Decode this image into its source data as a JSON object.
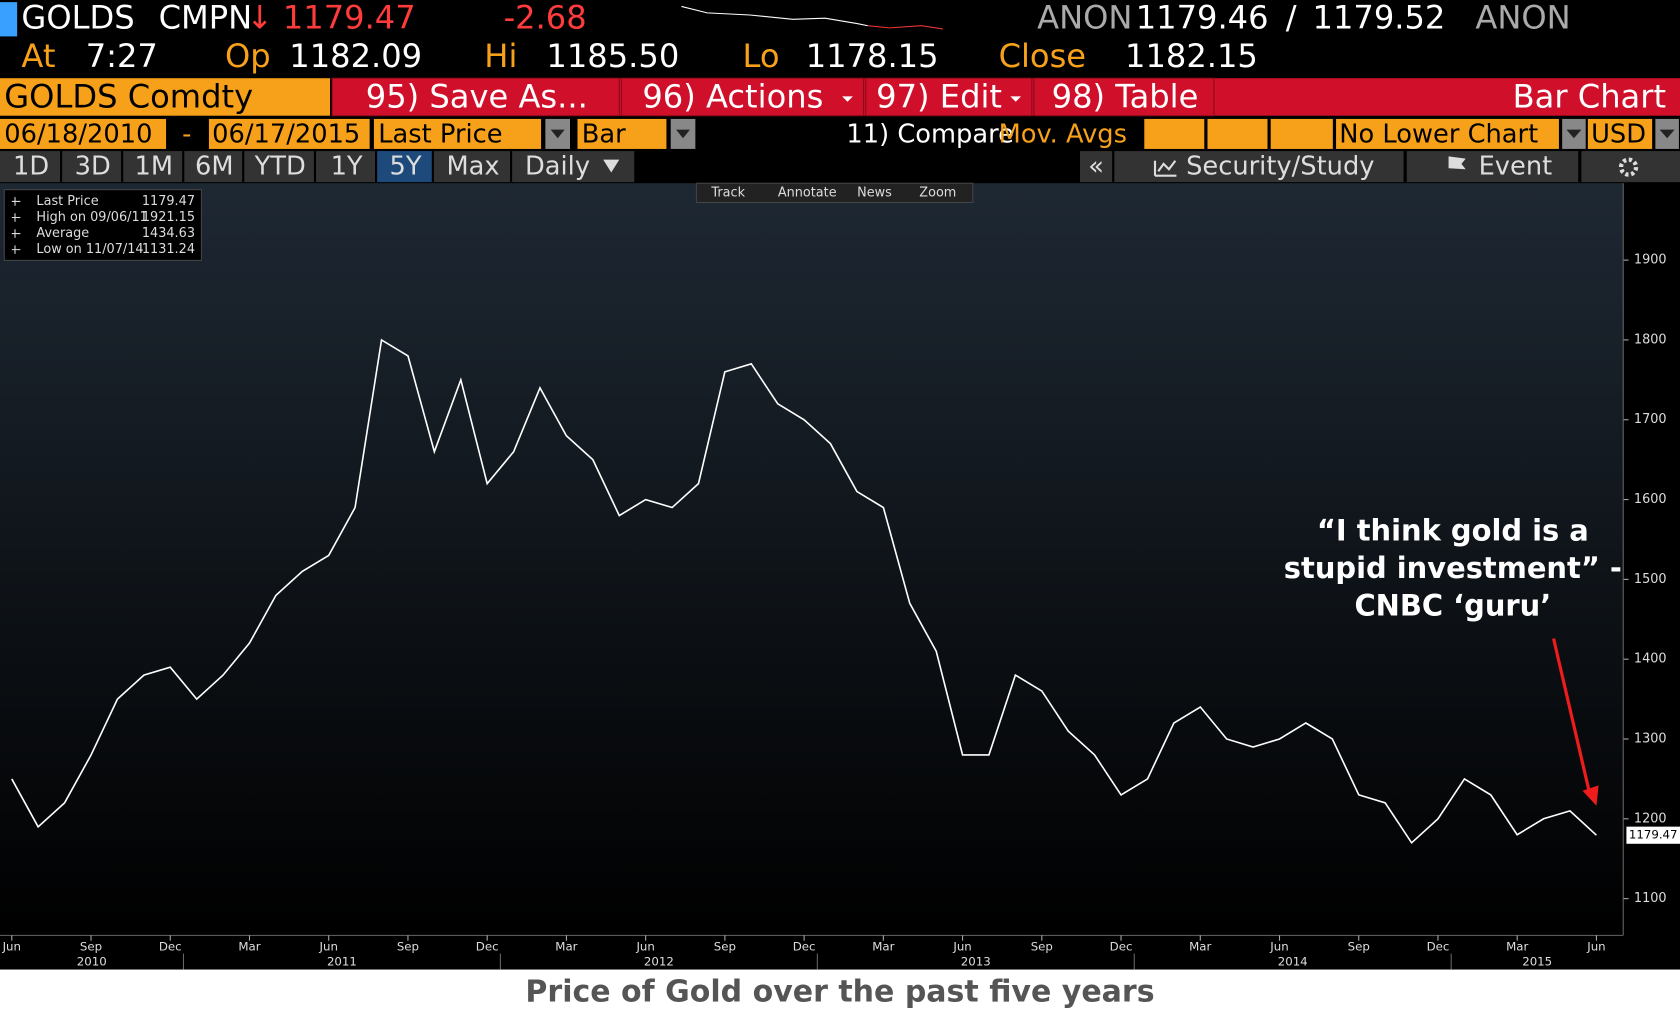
{
  "quote": {
    "ticker": "GOLDS",
    "source": "CMPN",
    "arrow": "↓",
    "last": "1179.47",
    "change": "-2.68",
    "bid_source": "ANON",
    "bid": "1179.46",
    "separator": "/",
    "ask": "1179.52",
    "ask_source": "ANON"
  },
  "stats": {
    "at_label": "At",
    "time": "7:27",
    "open_label": "Op",
    "open": "1182.09",
    "high_label": "Hi",
    "high": "1185.50",
    "low_label": "Lo",
    "low": "1178.15",
    "close_label": "Close",
    "close": "1182.15"
  },
  "toolbar": {
    "security": "GOLDS Comdty",
    "buttons": [
      "95) Save As...",
      "96) Actions",
      "97) Edit",
      "98) Table"
    ],
    "view": "Bar Chart"
  },
  "settings": {
    "start": "06/18/2010",
    "dash": "-",
    "end": "06/17/2015",
    "field": "Last Price",
    "style": "Bar",
    "compare": "11) Compare",
    "mov_avgs": "Mov. Avgs",
    "lower": "No Lower Chart",
    "currency": "USD"
  },
  "tabs": {
    "periods": [
      "1D",
      "3D",
      "1M",
      "6M",
      "YTD",
      "1Y",
      "5Y",
      "Max"
    ],
    "active": 6,
    "frequency": "Daily",
    "collapse": "«",
    "right": [
      "Security/Study",
      "Event"
    ]
  },
  "chart_tools": [
    "Track",
    "Annotate",
    "News",
    "Zoom"
  ],
  "chart_data": {
    "type": "line",
    "color": "#ffffff",
    "legend": [
      {
        "label": "Last Price",
        "value": 1179.47
      },
      {
        "label": "High on 09/06/11",
        "value": 1921.15
      },
      {
        "label": "Average",
        "value": 1434.63
      },
      {
        "label": "Low on 11/07/14",
        "value": 1131.24
      }
    ],
    "categories": [
      "Jun",
      null,
      null,
      "Sep",
      null,
      null,
      "Dec",
      null,
      null,
      "Mar",
      null,
      null,
      "Jun",
      null,
      null,
      "Sep",
      null,
      null,
      "Dec",
      null,
      null,
      "Mar",
      null,
      null,
      "Jun",
      null,
      null,
      "Sep",
      null,
      null,
      "Dec",
      null,
      null,
      "Mar",
      null,
      null,
      "Jun",
      null,
      null,
      "Sep",
      null,
      null,
      "Dec",
      null,
      null,
      "Mar",
      null,
      null,
      "Jun",
      null,
      null,
      "Sep",
      null,
      null,
      "Dec",
      null,
      null,
      "Mar",
      null,
      null,
      "Jun"
    ],
    "years": [
      "2010",
      "2011",
      "2012",
      "2013",
      "2014",
      "2015"
    ],
    "values": [
      1250,
      1190,
      1220,
      1280,
      1350,
      1380,
      1390,
      1350,
      1380,
      1420,
      1480,
      1510,
      1530,
      1590,
      1800,
      1780,
      1660,
      1750,
      1620,
      1660,
      1740,
      1680,
      1650,
      1580,
      1600,
      1590,
      1620,
      1760,
      1770,
      1720,
      1700,
      1670,
      1610,
      1590,
      1470,
      1410,
      1280,
      1280,
      1380,
      1360,
      1310,
      1280,
      1230,
      1250,
      1320,
      1340,
      1300,
      1290,
      1300,
      1320,
      1300,
      1230,
      1220,
      1170,
      1200,
      1250,
      1230,
      1180,
      1200,
      1210,
      1179.47
    ],
    "ylim": [
      1054,
      1995
    ],
    "yticks": [
      1100,
      1200,
      1300,
      1400,
      1500,
      1600,
      1700,
      1800,
      1900
    ],
    "last_value": 1179.47,
    "annotation": [
      "“I think gold is a",
      "stupid investment” -",
      "CNBC ‘guru’"
    ],
    "annotation_color": "#ee1c1c"
  },
  "caption": "Price of Gold over the past five years"
}
